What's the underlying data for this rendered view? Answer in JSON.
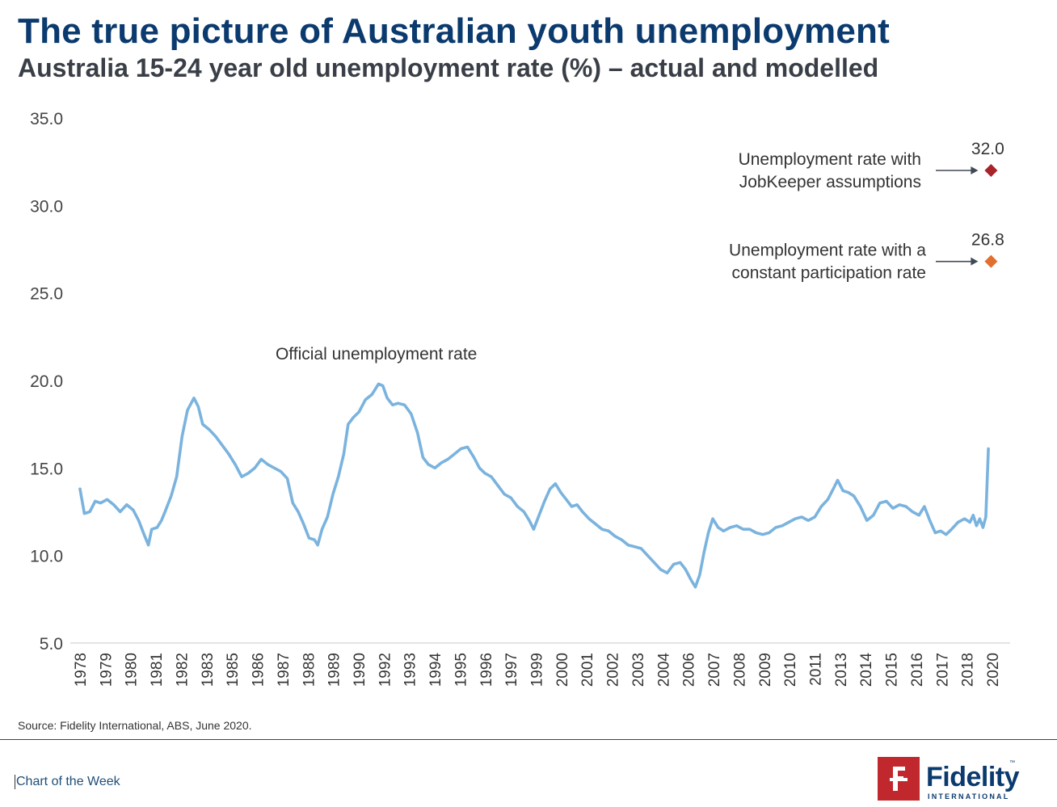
{
  "header": {
    "title": "The true picture of Australian youth unemployment",
    "subtitle": "Australia 15-24 year old unemployment rate (%) – actual and modelled"
  },
  "footer": {
    "source": "Source: Fidelity International, ABS, June 2020.",
    "label": "Chart of the Week",
    "logo_word": "Fidelity",
    "logo_sub": "INTERNATIONAL",
    "logo_tm": "™"
  },
  "chart_data": {
    "type": "line",
    "title": "",
    "xlabel": "",
    "ylabel": "",
    "xlim": [
      1978.0,
      2021.0
    ],
    "ylim": [
      5.0,
      35.0
    ],
    "yticks": [
      "5.0",
      "10.0",
      "15.0",
      "20.0",
      "25.0",
      "30.0",
      "35.0"
    ],
    "xticks": [
      "1978",
      "1979",
      "1980",
      "1981",
      "1982",
      "1983",
      "1985",
      "1986",
      "1987",
      "1988",
      "1989",
      "1990",
      "1992",
      "1993",
      "1994",
      "1995",
      "1996",
      "1997",
      "1999",
      "2000",
      "2001",
      "2002",
      "2003",
      "2004",
      "2006",
      "2007",
      "2008",
      "2009",
      "2010",
      "2011",
      "2013",
      "2014",
      "2015",
      "2016",
      "2017",
      "2018",
      "2020"
    ],
    "grid": false,
    "line_color": "#7ab3de",
    "series": [
      {
        "name": "Official unemployment rate",
        "points": [
          [
            1978.15,
            13.8
          ],
          [
            1978.35,
            12.4
          ],
          [
            1978.6,
            12.5
          ],
          [
            1978.85,
            13.1
          ],
          [
            1979.1,
            13.0
          ],
          [
            1979.4,
            13.2
          ],
          [
            1979.7,
            12.9
          ],
          [
            1980.0,
            12.5
          ],
          [
            1980.3,
            12.9
          ],
          [
            1980.6,
            12.6
          ],
          [
            1980.85,
            12.0
          ],
          [
            1981.1,
            11.2
          ],
          [
            1981.3,
            10.6
          ],
          [
            1981.45,
            11.5
          ],
          [
            1981.7,
            11.6
          ],
          [
            1981.9,
            12.0
          ],
          [
            1982.1,
            12.6
          ],
          [
            1982.35,
            13.4
          ],
          [
            1982.6,
            14.5
          ],
          [
            1982.85,
            16.8
          ],
          [
            1983.1,
            18.3
          ],
          [
            1983.4,
            19.0
          ],
          [
            1983.6,
            18.5
          ],
          [
            1983.8,
            17.5
          ],
          [
            1984.1,
            17.2
          ],
          [
            1984.4,
            16.8
          ],
          [
            1984.7,
            16.3
          ],
          [
            1985.0,
            15.8
          ],
          [
            1985.3,
            15.2
          ],
          [
            1985.6,
            14.5
          ],
          [
            1985.9,
            14.7
          ],
          [
            1986.2,
            15.0
          ],
          [
            1986.5,
            15.5
          ],
          [
            1986.8,
            15.2
          ],
          [
            1987.1,
            15.0
          ],
          [
            1987.4,
            14.8
          ],
          [
            1987.7,
            14.4
          ],
          [
            1987.95,
            13.0
          ],
          [
            1988.2,
            12.5
          ],
          [
            1988.45,
            11.8
          ],
          [
            1988.7,
            11.0
          ],
          [
            1988.95,
            10.9
          ],
          [
            1989.1,
            10.6
          ],
          [
            1989.3,
            11.5
          ],
          [
            1989.55,
            12.2
          ],
          [
            1989.8,
            13.5
          ],
          [
            1990.05,
            14.5
          ],
          [
            1990.3,
            15.8
          ],
          [
            1990.5,
            17.5
          ],
          [
            1990.75,
            17.9
          ],
          [
            1991.0,
            18.2
          ],
          [
            1991.3,
            18.9
          ],
          [
            1991.6,
            19.2
          ],
          [
            1991.9,
            19.8
          ],
          [
            1992.1,
            19.7
          ],
          [
            1992.3,
            19.0
          ],
          [
            1992.55,
            18.6
          ],
          [
            1992.8,
            18.7
          ],
          [
            1993.1,
            18.6
          ],
          [
            1993.4,
            18.1
          ],
          [
            1993.7,
            17.0
          ],
          [
            1993.95,
            15.6
          ],
          [
            1994.2,
            15.2
          ],
          [
            1994.5,
            15.0
          ],
          [
            1994.8,
            15.3
          ],
          [
            1995.1,
            15.5
          ],
          [
            1995.4,
            15.8
          ],
          [
            1995.7,
            16.1
          ],
          [
            1996.0,
            16.2
          ],
          [
            1996.3,
            15.6
          ],
          [
            1996.55,
            15.0
          ],
          [
            1996.8,
            14.7
          ],
          [
            1997.1,
            14.5
          ],
          [
            1997.4,
            14.0
          ],
          [
            1997.7,
            13.5
          ],
          [
            1998.0,
            13.3
          ],
          [
            1998.3,
            12.8
          ],
          [
            1998.6,
            12.5
          ],
          [
            1998.85,
            12.0
          ],
          [
            1999.05,
            11.5
          ],
          [
            1999.3,
            12.3
          ],
          [
            1999.55,
            13.1
          ],
          [
            1999.8,
            13.8
          ],
          [
            2000.05,
            14.1
          ],
          [
            2000.3,
            13.6
          ],
          [
            2000.55,
            13.2
          ],
          [
            2000.8,
            12.8
          ],
          [
            2001.05,
            12.9
          ],
          [
            2001.3,
            12.5
          ],
          [
            2001.6,
            12.1
          ],
          [
            2001.9,
            11.8
          ],
          [
            2002.2,
            11.5
          ],
          [
            2002.5,
            11.4
          ],
          [
            2002.8,
            11.1
          ],
          [
            2003.1,
            10.9
          ],
          [
            2003.4,
            10.6
          ],
          [
            2003.7,
            10.5
          ],
          [
            2004.0,
            10.4
          ],
          [
            2004.3,
            10.0
          ],
          [
            2004.6,
            9.6
          ],
          [
            2004.9,
            9.2
          ],
          [
            2005.2,
            9.0
          ],
          [
            2005.5,
            9.5
          ],
          [
            2005.8,
            9.6
          ],
          [
            2006.05,
            9.2
          ],
          [
            2006.3,
            8.6
          ],
          [
            2006.5,
            8.2
          ],
          [
            2006.7,
            8.9
          ],
          [
            2006.9,
            10.2
          ],
          [
            2007.1,
            11.3
          ],
          [
            2007.3,
            12.1
          ],
          [
            2007.55,
            11.6
          ],
          [
            2007.8,
            11.4
          ],
          [
            2008.1,
            11.6
          ],
          [
            2008.4,
            11.7
          ],
          [
            2008.7,
            11.5
          ],
          [
            2009.0,
            11.5
          ],
          [
            2009.3,
            11.3
          ],
          [
            2009.6,
            11.2
          ],
          [
            2009.9,
            11.3
          ],
          [
            2010.2,
            11.6
          ],
          [
            2010.5,
            11.7
          ],
          [
            2010.8,
            11.9
          ],
          [
            2011.1,
            12.1
          ],
          [
            2011.4,
            12.2
          ],
          [
            2011.7,
            12.0
          ],
          [
            2012.0,
            12.2
          ],
          [
            2012.3,
            12.8
          ],
          [
            2012.6,
            13.2
          ],
          [
            2012.85,
            13.8
          ],
          [
            2013.05,
            14.3
          ],
          [
            2013.3,
            13.7
          ],
          [
            2013.55,
            13.6
          ],
          [
            2013.8,
            13.4
          ],
          [
            2014.1,
            12.8
          ],
          [
            2014.4,
            12.0
          ],
          [
            2014.7,
            12.3
          ],
          [
            2015.0,
            13.0
          ],
          [
            2015.3,
            13.1
          ],
          [
            2015.6,
            12.7
          ],
          [
            2015.9,
            12.9
          ],
          [
            2016.2,
            12.8
          ],
          [
            2016.5,
            12.5
          ],
          [
            2016.8,
            12.3
          ],
          [
            2017.05,
            12.8
          ],
          [
            2017.3,
            12.0
          ],
          [
            2017.55,
            11.3
          ],
          [
            2017.8,
            11.4
          ],
          [
            2018.05,
            11.2
          ],
          [
            2018.3,
            11.5
          ],
          [
            2018.6,
            11.9
          ],
          [
            2018.9,
            12.1
          ],
          [
            2019.15,
            11.9
          ],
          [
            2019.3,
            12.3
          ],
          [
            2019.45,
            11.7
          ],
          [
            2019.6,
            12.1
          ],
          [
            2019.75,
            11.6
          ],
          [
            2019.88,
            12.2
          ],
          [
            2020.0,
            16.1
          ]
        ]
      },
      {
        "name": "Unemployment rate with JobKeeper assumptions",
        "marker": "diamond",
        "color": "#a8232a",
        "points": [
          [
            2020.12,
            32.0
          ]
        ],
        "value_label": "32.0",
        "label_lines": [
          "Unemployment rate with",
          "JobKeeper assumptions"
        ]
      },
      {
        "name": "Unemployment rate with a constant participation rate",
        "marker": "diamond",
        "color": "#e07030",
        "points": [
          [
            2020.12,
            26.8
          ]
        ],
        "value_label": "26.8",
        "label_lines": [
          "Unemployment rate with a",
          "constant participation rate"
        ]
      }
    ],
    "annotation": "Official unemployment rate",
    "annotation_at": [
      1991.8,
      21.2
    ]
  }
}
